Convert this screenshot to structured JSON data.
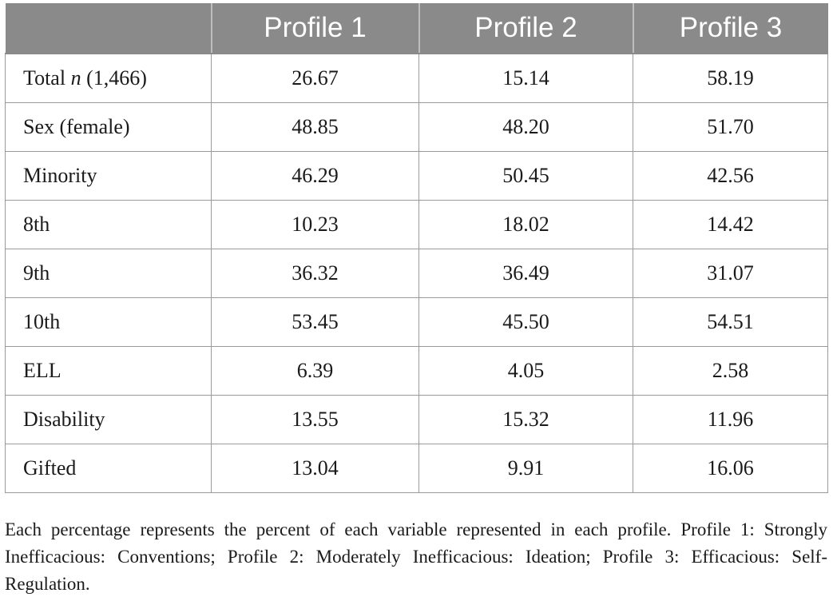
{
  "table": {
    "headers": [
      "",
      "Profile 1",
      "Profile 2",
      "Profile 3"
    ],
    "rows": [
      {
        "label_pre": "Total ",
        "label_italic": "n",
        "label_post": " (1,466)",
        "values": [
          "26.67",
          "15.14",
          "58.19"
        ]
      },
      {
        "label_pre": "Sex (female)",
        "label_italic": "",
        "label_post": "",
        "values": [
          "48.85",
          "48.20",
          "51.70"
        ]
      },
      {
        "label_pre": "Minority",
        "label_italic": "",
        "label_post": "",
        "values": [
          "46.29",
          "50.45",
          "42.56"
        ]
      },
      {
        "label_pre": "8th",
        "label_italic": "",
        "label_post": "",
        "values": [
          "10.23",
          "18.02",
          "14.42"
        ]
      },
      {
        "label_pre": "9th",
        "label_italic": "",
        "label_post": "",
        "values": [
          "36.32",
          "36.49",
          "31.07"
        ]
      },
      {
        "label_pre": "10th",
        "label_italic": "",
        "label_post": "",
        "values": [
          "53.45",
          "45.50",
          "54.51"
        ]
      },
      {
        "label_pre": "ELL",
        "label_italic": "",
        "label_post": "",
        "values": [
          "6.39",
          "4.05",
          "2.58"
        ]
      },
      {
        "label_pre": "Disability",
        "label_italic": "",
        "label_post": "",
        "values": [
          "13.55",
          "15.32",
          "11.96"
        ]
      },
      {
        "label_pre": "Gifted",
        "label_italic": "",
        "label_post": "",
        "values": [
          "13.04",
          "9.91",
          "16.06"
        ]
      }
    ]
  },
  "note": "Each percentage represents the percent of each variable represented in each profile. Profile 1: Strongly Inefficacious: Conventions; Profile 2: Moderately Inefficacious: Ideation; Profile 3: Efficacious: Self-Regulation."
}
